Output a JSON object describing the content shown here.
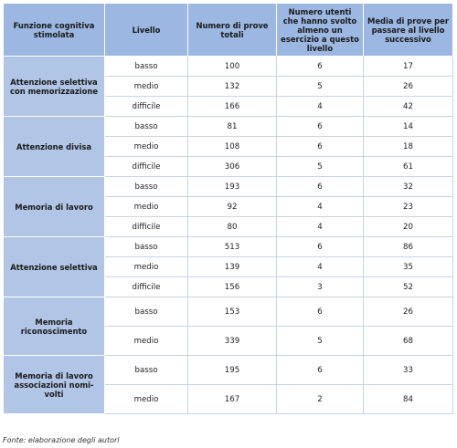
{
  "headers": [
    "Funzione cognitiva stimolata",
    "Livello",
    "Numero di prove totali",
    "Numero utenti che hanno svolto almeno un esercizio a questo livello",
    "Media di prove per passare al livello successivo"
  ],
  "groups": [
    {
      "name": "Attenzione selettiva con memorizzazione",
      "rows": [
        {
          "level": "basso",
          "total": "100",
          "users": "6",
          "avg": "17"
        },
        {
          "level": "medio",
          "total": "132",
          "users": "5",
          "avg": "26"
        },
        {
          "level": "difficile",
          "total": "166",
          "users": "4",
          "avg": "42"
        }
      ]
    },
    {
      "name": "Attenzione divisa",
      "rows": [
        {
          "level": "basso",
          "total": "81",
          "users": "6",
          "avg": "14"
        },
        {
          "level": "medio",
          "total": "108",
          "users": "6",
          "avg": "18"
        },
        {
          "level": "difficile",
          "total": "306",
          "users": "5",
          "avg": "61"
        }
      ]
    },
    {
      "name": "Memoria di lavoro",
      "rows": [
        {
          "level": "basso",
          "total": "193",
          "users": "6",
          "avg": "32"
        },
        {
          "level": "medio",
          "total": "92",
          "users": "4",
          "avg": "23"
        },
        {
          "level": "difficile",
          "total": "80",
          "users": "4",
          "avg": "20"
        }
      ]
    },
    {
      "name": "Attenzione selettiva",
      "rows": [
        {
          "level": "basso",
          "total": "513",
          "users": "6",
          "avg": "86"
        },
        {
          "level": "medio",
          "total": "139",
          "users": "4",
          "avg": "35"
        },
        {
          "level": "difficile",
          "total": "156",
          "users": "3",
          "avg": "52"
        }
      ]
    },
    {
      "name": "Memoria riconoscimento",
      "rows": [
        {
          "level": "basso",
          "total": "153",
          "users": "6",
          "avg": "26"
        },
        {
          "level": "medio",
          "total": "339",
          "users": "5",
          "avg": "68"
        }
      ]
    },
    {
      "name": "Memoria di lavoro associazioni nomi-volti",
      "rows": [
        {
          "level": "basso",
          "total": "195",
          "users": "6",
          "avg": "33"
        },
        {
          "level": "medio",
          "total": "167",
          "users": "2",
          "avg": "84"
        }
      ]
    }
  ],
  "source": "Fonte: elaborazione degli autori"
}
